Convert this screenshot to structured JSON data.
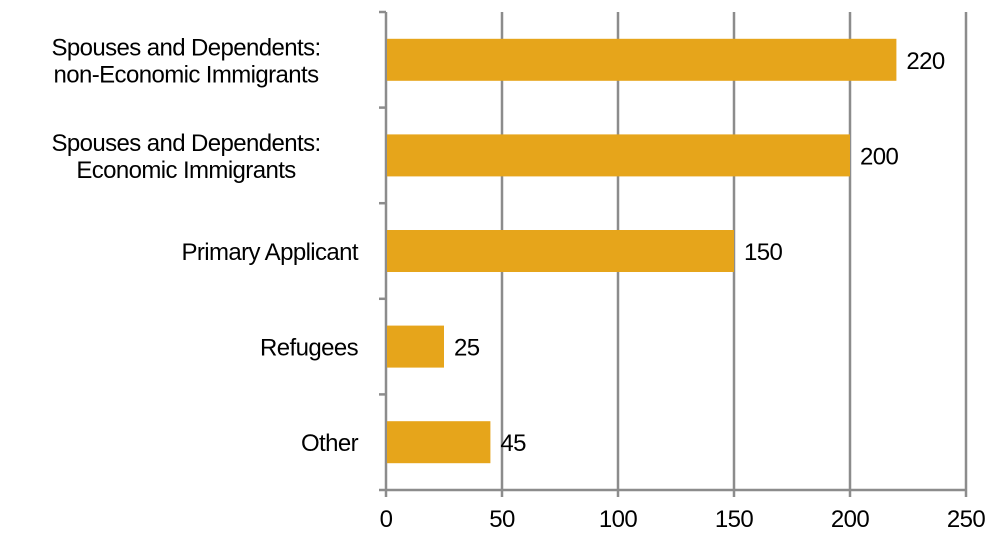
{
  "chart_data": {
    "type": "bar",
    "orientation": "horizontal",
    "categories": [
      [
        "Spouses and Dependents:",
        "non-Economic Immigrants"
      ],
      [
        "Spouses and Dependents:",
        "Economic Immigrants"
      ],
      [
        "Primary Applicant"
      ],
      [
        "Refugees"
      ],
      [
        "Other"
      ]
    ],
    "values": [
      220,
      200,
      150,
      25,
      45
    ],
    "data_labels": [
      "220",
      "200",
      "150",
      "25",
      "45"
    ],
    "x_ticks": [
      0,
      50,
      100,
      150,
      200,
      250
    ],
    "x_tick_labels": [
      "0",
      "50",
      "100",
      "150",
      "200",
      "250"
    ],
    "xlim": [
      0,
      250
    ],
    "grid": "vertical",
    "legend": "none",
    "colors": {
      "bar": "#E6A51B",
      "grid": "#8C8C8C",
      "axis": "#8C8C8C",
      "text": "#000000"
    }
  }
}
